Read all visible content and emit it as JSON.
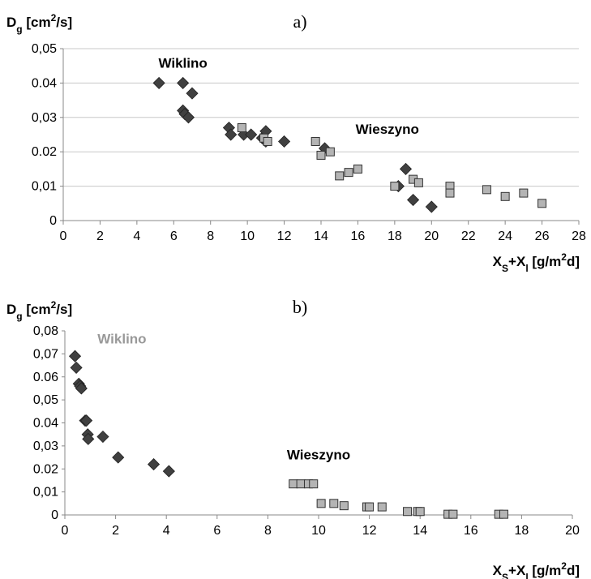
{
  "chart_data": [
    {
      "type": "scatter",
      "panel_label": "a)",
      "ylabel": "D_g [cm²/s]",
      "xlabel": "X_S+X_l [g/m²d]",
      "xlim": [
        0,
        28
      ],
      "ylim": [
        0,
        0.05
      ],
      "x_ticks": [
        "0",
        "2",
        "4",
        "6",
        "8",
        "10",
        "12",
        "14",
        "16",
        "18",
        "20",
        "22",
        "24",
        "26",
        "28"
      ],
      "y_ticks": [
        "0",
        "0,01",
        "0.02",
        "0,03",
        "0.04",
        "0,05"
      ],
      "grid": true,
      "annotations": [
        {
          "text": "Wiklino",
          "x": 6.5,
          "y": 0.0445,
          "color": "#000000"
        },
        {
          "text": "Wieszyno",
          "x": 17.6,
          "y": 0.0252,
          "color": "#000000"
        }
      ],
      "series": [
        {
          "marker": "diamond",
          "color": "#404040",
          "points": [
            [
              5.2,
              0.04
            ],
            [
              6.5,
              0.04
            ],
            [
              6.5,
              0.032
            ],
            [
              6.6,
              0.031
            ],
            [
              6.8,
              0.03
            ],
            [
              7.0,
              0.037
            ],
            [
              9.0,
              0.027
            ],
            [
              9.1,
              0.025
            ],
            [
              9.8,
              0.025
            ],
            [
              10.2,
              0.025
            ],
            [
              10.8,
              0.024
            ],
            [
              11.0,
              0.026
            ],
            [
              11.0,
              0.023
            ],
            [
              12.0,
              0.023
            ],
            [
              14.2,
              0.021
            ],
            [
              18.2,
              0.01
            ],
            [
              18.6,
              0.015
            ],
            [
              19.0,
              0.006
            ],
            [
              20.0,
              0.004
            ]
          ]
        },
        {
          "marker": "square",
          "color": "#b4b4b4",
          "points": [
            [
              9.7,
              0.027
            ],
            [
              10.9,
              0.024
            ],
            [
              11.1,
              0.023
            ],
            [
              13.7,
              0.023
            ],
            [
              14.0,
              0.019
            ],
            [
              14.5,
              0.02
            ],
            [
              15.0,
              0.013
            ],
            [
              15.5,
              0.014
            ],
            [
              16.0,
              0.015
            ],
            [
              18.0,
              0.01
            ],
            [
              19.0,
              0.012
            ],
            [
              19.3,
              0.011
            ],
            [
              21.0,
              0.01
            ],
            [
              21.0,
              0.008
            ],
            [
              23.0,
              0.009
            ],
            [
              24.0,
              0.007
            ],
            [
              25.0,
              0.008
            ],
            [
              26.0,
              0.005
            ]
          ]
        }
      ]
    },
    {
      "type": "scatter",
      "panel_label": "b)",
      "ylabel": "D_g [cm²/s]",
      "xlabel": "X_S+X_l [g/m²d]",
      "xlim": [
        0,
        20
      ],
      "ylim": [
        0,
        0.08
      ],
      "x_ticks": [
        "0",
        "2",
        "4",
        "6",
        "8",
        "10",
        "12",
        "14",
        "16",
        "18",
        "20"
      ],
      "y_ticks": [
        "0",
        "0,01",
        "0.02",
        "0,03",
        "0.04",
        "0,05",
        "0.06",
        "0,07",
        "0,08"
      ],
      "grid": false,
      "annotations": [
        {
          "text": "Wiklino",
          "x": 2.25,
          "y": 0.0745,
          "color": "#999999"
        },
        {
          "text": "Wieszyno",
          "x": 10.0,
          "y": 0.0242,
          "color": "#000000"
        }
      ],
      "series": [
        {
          "marker": "diamond",
          "color": "#404040",
          "points": [
            [
              0.4,
              0.069
            ],
            [
              0.45,
              0.064
            ],
            [
              0.55,
              0.057
            ],
            [
              0.6,
              0.056
            ],
            [
              0.65,
              0.055
            ],
            [
              0.8,
              0.041
            ],
            [
              0.85,
              0.041
            ],
            [
              0.9,
              0.035
            ],
            [
              0.92,
              0.033
            ],
            [
              1.5,
              0.034
            ],
            [
              2.1,
              0.025
            ],
            [
              3.5,
              0.022
            ],
            [
              4.1,
              0.019
            ]
          ]
        },
        {
          "marker": "square",
          "color": "#b4b4b4",
          "points": [
            [
              9.0,
              0.0135
            ],
            [
              9.3,
              0.0135
            ],
            [
              9.6,
              0.0135
            ],
            [
              9.8,
              0.0135
            ],
            [
              10.1,
              0.005
            ],
            [
              10.6,
              0.005
            ],
            [
              11.0,
              0.004
            ],
            [
              11.9,
              0.0035
            ],
            [
              12.0,
              0.0035
            ],
            [
              12.5,
              0.0035
            ],
            [
              13.5,
              0.0015
            ],
            [
              13.9,
              0.0015
            ],
            [
              14.0,
              0.0015
            ],
            [
              15.1,
              0.0003
            ],
            [
              15.3,
              0.0003
            ],
            [
              17.1,
              0.0003
            ],
            [
              17.3,
              0.0003
            ]
          ]
        }
      ]
    }
  ]
}
